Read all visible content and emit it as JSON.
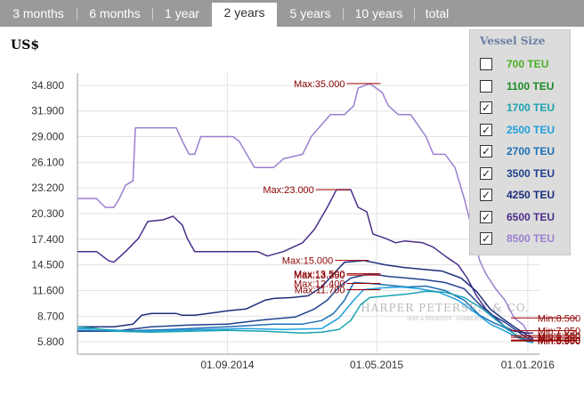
{
  "tabs": [
    {
      "label": "3 months",
      "active": false
    },
    {
      "label": "6 months",
      "active": false
    },
    {
      "label": "1 year",
      "active": false
    },
    {
      "label": "2 years",
      "active": true
    },
    {
      "label": "5 years",
      "active": false
    },
    {
      "label": "10 years",
      "active": false
    },
    {
      "label": "total",
      "active": false
    }
  ],
  "unit_label": "US$",
  "watermark": {
    "line1": "HARPER PETERSEN & CO.",
    "line2": "SHIP & BROKERS · HAMBURG"
  },
  "legend": {
    "title": "Vessel Size",
    "items": [
      {
        "label": "700 TEU",
        "checked": false,
        "color": "#4caf26",
        "check": "☐"
      },
      {
        "label": "1100 TEU",
        "checked": false,
        "color": "#1a8a26",
        "check": "☐"
      },
      {
        "label": "1700 TEU",
        "checked": true,
        "color": "#1aa3b0",
        "check": "✓"
      },
      {
        "label": "2500 TEU",
        "checked": true,
        "color": "#1f9fdc",
        "check": "✓"
      },
      {
        "label": "2700 TEU",
        "checked": true,
        "color": "#1f6fb5",
        "check": "✓"
      },
      {
        "label": "3500 TEU",
        "checked": true,
        "color": "#24418f",
        "check": "✓"
      },
      {
        "label": "4250 TEU",
        "checked": true,
        "color": "#1c2f7a",
        "check": "✓"
      },
      {
        "label": "6500 TEU",
        "checked": true,
        "color": "#4a2e8c",
        "check": "✓"
      },
      {
        "label": "8500 TEU",
        "checked": true,
        "color": "#9b7fd0",
        "check": "✓"
      }
    ]
  },
  "chart_data": {
    "type": "line",
    "ylabel": "US$",
    "ylim": [
      4400,
      36200
    ],
    "xlim": [
      "2014-01-01",
      "2016-01-20"
    ],
    "yticks": [
      "34.800",
      "31.900",
      "29.000",
      "26.100",
      "23.200",
      "20.300",
      "17.400",
      "14.500",
      "11.600",
      "8.700",
      "5.800"
    ],
    "ytick_values": [
      34800,
      31900,
      29000,
      26100,
      23200,
      20300,
      17400,
      14500,
      11600,
      8700,
      5800
    ],
    "xticks": [
      "01.09.2014",
      "01.05.2015",
      "01.01.2016"
    ],
    "xtick_dates": [
      "2014-09-01",
      "2015-05-01",
      "2016-01-01"
    ],
    "grid": true,
    "series": [
      {
        "name": "8500 TEU",
        "color": "#9b7fd0",
        "points": [
          [
            "2014-01-01",
            22000
          ],
          [
            "2014-02-01",
            22000
          ],
          [
            "2014-02-15",
            21000
          ],
          [
            "2014-03-01",
            21000
          ],
          [
            "2014-03-10",
            22000
          ],
          [
            "2014-03-20",
            23500
          ],
          [
            "2014-04-01",
            24000
          ],
          [
            "2014-04-05",
            30000
          ],
          [
            "2014-06-10",
            30000
          ],
          [
            "2014-06-20",
            28500
          ],
          [
            "2014-07-01",
            27000
          ],
          [
            "2014-07-10",
            27000
          ],
          [
            "2014-07-20",
            29000
          ],
          [
            "2014-08-05",
            29000
          ],
          [
            "2014-08-20",
            29000
          ],
          [
            "2014-09-10",
            29000
          ],
          [
            "2014-09-20",
            28500
          ],
          [
            "2014-10-15",
            25500
          ],
          [
            "2014-11-15",
            25500
          ],
          [
            "2014-12-01",
            26500
          ],
          [
            "2015-01-01",
            27000
          ],
          [
            "2015-01-15",
            29000
          ],
          [
            "2015-02-15",
            31500
          ],
          [
            "2015-03-10",
            31500
          ],
          [
            "2015-03-25",
            32500
          ],
          [
            "2015-04-01",
            34500
          ],
          [
            "2015-04-20",
            35000
          ],
          [
            "2015-05-10",
            34000
          ],
          [
            "2015-05-20",
            32500
          ],
          [
            "2015-06-05",
            31500
          ],
          [
            "2015-06-25",
            31500
          ],
          [
            "2015-07-10",
            30000
          ],
          [
            "2015-07-20",
            29000
          ],
          [
            "2015-08-01",
            27000
          ],
          [
            "2015-08-20",
            27000
          ],
          [
            "2015-09-05",
            25500
          ],
          [
            "2015-09-20",
            22000
          ],
          [
            "2015-10-01",
            19000
          ],
          [
            "2015-10-15",
            15000
          ],
          [
            "2015-10-25",
            13500
          ],
          [
            "2015-11-10",
            11800
          ],
          [
            "2015-11-25",
            10500
          ],
          [
            "2015-12-10",
            8500
          ],
          [
            "2015-12-25",
            7700
          ],
          [
            "2016-01-01",
            6800
          ],
          [
            "2016-01-10",
            6000
          ]
        ]
      },
      {
        "name": "6500 TEU",
        "color": "#4a2e8c",
        "points": [
          [
            "2014-01-01",
            16000
          ],
          [
            "2014-02-01",
            16000
          ],
          [
            "2014-02-20",
            15000
          ],
          [
            "2014-03-01",
            14800
          ],
          [
            "2014-03-20",
            16000
          ],
          [
            "2014-04-10",
            17500
          ],
          [
            "2014-04-25",
            19400
          ],
          [
            "2014-05-20",
            19600
          ],
          [
            "2014-06-05",
            20000
          ],
          [
            "2014-06-20",
            19000
          ],
          [
            "2014-06-28",
            17500
          ],
          [
            "2014-07-10",
            16000
          ],
          [
            "2014-08-15",
            16000
          ],
          [
            "2014-10-20",
            16000
          ],
          [
            "2014-11-05",
            15500
          ],
          [
            "2014-12-01",
            16000
          ],
          [
            "2015-01-01",
            17000
          ],
          [
            "2015-01-20",
            18500
          ],
          [
            "2015-02-10",
            21000
          ],
          [
            "2015-02-25",
            23000
          ],
          [
            "2015-03-20",
            23000
          ],
          [
            "2015-04-01",
            21000
          ],
          [
            "2015-04-15",
            20500
          ],
          [
            "2015-04-25",
            18000
          ],
          [
            "2015-05-15",
            17500
          ],
          [
            "2015-06-01",
            17000
          ],
          [
            "2015-06-15",
            17200
          ],
          [
            "2015-07-15",
            17000
          ],
          [
            "2015-08-01",
            16500
          ],
          [
            "2015-08-20",
            15500
          ],
          [
            "2015-09-10",
            14500
          ],
          [
            "2015-09-25",
            13000
          ],
          [
            "2015-10-10",
            11000
          ],
          [
            "2015-10-25",
            9500
          ],
          [
            "2015-11-10",
            8500
          ],
          [
            "2015-11-25",
            7500
          ],
          [
            "2015-12-10",
            7000
          ],
          [
            "2016-01-01",
            6800
          ],
          [
            "2016-01-10",
            6800
          ]
        ]
      },
      {
        "name": "4250 TEU",
        "color": "#1c2f7a",
        "points": [
          [
            "2014-01-01",
            7500
          ],
          [
            "2014-03-01",
            7500
          ],
          [
            "2014-04-01",
            7800
          ],
          [
            "2014-04-15",
            8800
          ],
          [
            "2014-05-01",
            9000
          ],
          [
            "2014-06-10",
            9000
          ],
          [
            "2014-06-20",
            8800
          ],
          [
            "2014-07-10",
            8800
          ],
          [
            "2014-08-01",
            9000
          ],
          [
            "2014-09-01",
            9300
          ],
          [
            "2014-10-01",
            9500
          ],
          [
            "2014-11-01",
            10500
          ],
          [
            "2014-11-15",
            10700
          ],
          [
            "2014-12-15",
            10800
          ],
          [
            "2015-01-10",
            11000
          ],
          [
            "2015-02-01",
            12000
          ],
          [
            "2015-02-20",
            13500
          ],
          [
            "2015-03-10",
            14800
          ],
          [
            "2015-04-10",
            15000
          ],
          [
            "2015-05-15",
            14500
          ],
          [
            "2015-06-15",
            14200
          ],
          [
            "2015-07-15",
            14000
          ],
          [
            "2015-08-15",
            13800
          ],
          [
            "2015-09-15",
            13000
          ],
          [
            "2015-10-10",
            11500
          ],
          [
            "2015-11-01",
            9500
          ],
          [
            "2015-11-20",
            8500
          ],
          [
            "2015-12-10",
            7500
          ],
          [
            "2016-01-01",
            6500
          ],
          [
            "2016-01-10",
            6200
          ]
        ]
      },
      {
        "name": "3500 TEU",
        "color": "#24418f",
        "points": [
          [
            "2014-01-01",
            7000
          ],
          [
            "2014-03-01",
            7000
          ],
          [
            "2014-05-01",
            7500
          ],
          [
            "2014-07-01",
            7700
          ],
          [
            "2014-09-01",
            7800
          ],
          [
            "2014-11-01",
            8300
          ],
          [
            "2014-12-20",
            8600
          ],
          [
            "2015-01-20",
            9500
          ],
          [
            "2015-02-10",
            10500
          ],
          [
            "2015-03-01",
            12000
          ],
          [
            "2015-03-20",
            13000
          ],
          [
            "2015-04-20",
            13500
          ],
          [
            "2015-05-20",
            13200
          ],
          [
            "2015-06-20",
            13000
          ],
          [
            "2015-07-20",
            12800
          ],
          [
            "2015-08-20",
            12500
          ],
          [
            "2015-09-20",
            11800
          ],
          [
            "2015-10-15",
            10000
          ],
          [
            "2015-11-05",
            8800
          ],
          [
            "2015-11-25",
            8000
          ],
          [
            "2015-12-15",
            7000
          ],
          [
            "2016-01-01",
            6200
          ],
          [
            "2016-01-10",
            6000
          ]
        ]
      },
      {
        "name": "2700 TEU",
        "color": "#1f6fb5",
        "points": [
          [
            "2014-01-01",
            7100
          ],
          [
            "2014-03-01",
            7000
          ],
          [
            "2014-06-01",
            7200
          ],
          [
            "2014-09-01",
            7500
          ],
          [
            "2014-11-15",
            7800
          ],
          [
            "2015-01-01",
            7800
          ],
          [
            "2015-02-01",
            8200
          ],
          [
            "2015-02-20",
            9000
          ],
          [
            "2015-03-10",
            10500
          ],
          [
            "2015-03-25",
            12500
          ],
          [
            "2015-04-20",
            12400
          ],
          [
            "2015-05-20",
            12200
          ],
          [
            "2015-06-20",
            12000
          ],
          [
            "2015-07-20",
            12100
          ],
          [
            "2015-08-20",
            11600
          ],
          [
            "2015-09-20",
            10500
          ],
          [
            "2015-10-15",
            8800
          ],
          [
            "2015-11-05",
            8000
          ],
          [
            "2015-11-25",
            7400
          ],
          [
            "2015-12-15",
            6500
          ],
          [
            "2016-01-01",
            6000
          ],
          [
            "2016-01-10",
            5900
          ]
        ]
      },
      {
        "name": "2500 TEU",
        "color": "#1f9fdc",
        "points": [
          [
            "2014-01-01",
            7300
          ],
          [
            "2014-02-15",
            7200
          ],
          [
            "2014-04-01",
            7000
          ],
          [
            "2014-06-01",
            7100
          ],
          [
            "2014-08-01",
            7200
          ],
          [
            "2014-10-01",
            7300
          ],
          [
            "2014-12-01",
            7200
          ],
          [
            "2015-02-01",
            7300
          ],
          [
            "2015-03-01",
            8500
          ],
          [
            "2015-03-25",
            10500
          ],
          [
            "2015-04-10",
            11700
          ],
          [
            "2015-05-10",
            11900
          ],
          [
            "2015-06-10",
            12000
          ],
          [
            "2015-07-10",
            11800
          ],
          [
            "2015-08-10",
            11400
          ],
          [
            "2015-09-10",
            10500
          ],
          [
            "2015-10-10",
            9000
          ],
          [
            "2015-11-01",
            7800
          ],
          [
            "2015-11-20",
            7200
          ],
          [
            "2015-12-15",
            6300
          ],
          [
            "2016-01-01",
            5800
          ],
          [
            "2016-01-10",
            5700
          ]
        ]
      },
      {
        "name": "1700 TEU",
        "color": "#1aa3b0",
        "points": [
          [
            "2014-01-01",
            7500
          ],
          [
            "2014-02-01",
            7300
          ],
          [
            "2014-03-01",
            7000
          ],
          [
            "2014-05-01",
            6900
          ],
          [
            "2014-07-01",
            7000
          ],
          [
            "2014-09-01",
            7100
          ],
          [
            "2014-11-01",
            7000
          ],
          [
            "2015-01-01",
            6800
          ],
          [
            "2015-02-01",
            6900
          ],
          [
            "2015-03-01",
            7200
          ],
          [
            "2015-03-20",
            8200
          ],
          [
            "2015-04-05",
            10000
          ],
          [
            "2015-04-20",
            10800
          ],
          [
            "2015-05-20",
            11000
          ],
          [
            "2015-06-20",
            11200
          ],
          [
            "2015-07-20",
            11500
          ],
          [
            "2015-08-20",
            11400
          ],
          [
            "2015-09-20",
            10800
          ],
          [
            "2015-10-20",
            9500
          ],
          [
            "2015-11-10",
            8300
          ],
          [
            "2015-12-01",
            7200
          ],
          [
            "2015-12-20",
            6200
          ],
          [
            "2016-01-10",
            5700
          ]
        ]
      }
    ],
    "annotations": [
      {
        "text": "Max:35.000",
        "x": "2015-04-20",
        "y": 35000
      },
      {
        "text": "Max:23.000",
        "x": "2015-03-01",
        "y": 23000
      },
      {
        "text": "Max:15.000",
        "x": "2015-04-01",
        "y": 15000
      },
      {
        "text": "Max:13.500",
        "x": "2015-04-20",
        "y": 13500
      },
      {
        "text": "Max:13.350",
        "x": "2015-04-20",
        "y": 13350
      },
      {
        "text": "Max:12.400",
        "x": "2015-04-20",
        "y": 12400
      },
      {
        "text": "Max:11.700",
        "x": "2015-04-20",
        "y": 11700
      },
      {
        "text": "Min:8.500",
        "x": "2015-12-25",
        "y": 8500
      },
      {
        "text": "Min:7.050",
        "x": "2015-12-25",
        "y": 7050
      },
      {
        "text": "Min:6.500",
        "x": "2015-12-25",
        "y": 6500
      },
      {
        "text": "Min:6.300",
        "x": "2015-12-25",
        "y": 6300
      },
      {
        "text": "Min:6.000",
        "x": "2015-12-25",
        "y": 6000
      },
      {
        "text": "Min:5.950",
        "x": "2015-12-25",
        "y": 5950
      },
      {
        "text": "Min:5.900",
        "x": "2015-12-25",
        "y": 5900
      }
    ]
  }
}
